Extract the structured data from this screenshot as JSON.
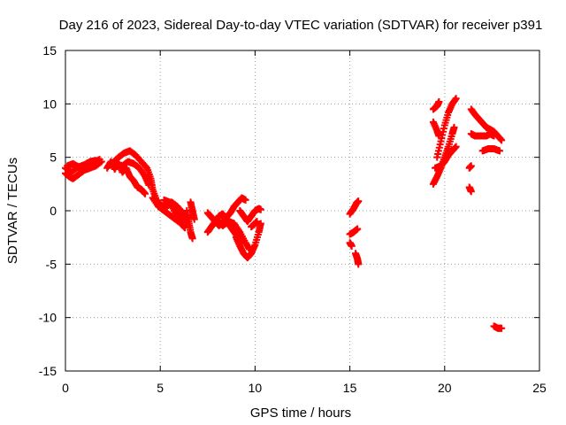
{
  "chart_data": {
    "type": "scatter",
    "title": "Day 216 of 2023, Sidereal Day-to-day VTEC variation (SDTVAR) for receiver p391",
    "xlabel": "GPS time / hours",
    "ylabel": "SDTVAR / TECUs",
    "xlim": [
      0,
      25
    ],
    "ylim": [
      -15,
      15
    ],
    "xticks": [
      "0",
      "5",
      "10",
      "15",
      "20",
      "25"
    ],
    "yticks": [
      "15",
      "10",
      "5",
      "0",
      "-5",
      "-10",
      "-15"
    ],
    "grid": true,
    "marker": "plus",
    "color": "#ff0000",
    "series": [
      {
        "name": "SDTVAR",
        "tracks": [
          [
            [
              0.0,
              4.0
            ],
            [
              0.3,
              3.6
            ],
            [
              0.6,
              4.0
            ],
            [
              0.9,
              4.2
            ],
            [
              1.2,
              4.4
            ],
            [
              1.5,
              4.5
            ],
            [
              1.8,
              4.8
            ]
          ],
          [
            [
              0.0,
              3.5
            ],
            [
              0.2,
              3.2
            ],
            [
              0.4,
              3.0
            ],
            [
              0.7,
              3.4
            ],
            [
              1.0,
              3.8
            ],
            [
              1.3,
              4.0
            ],
            [
              1.6,
              4.2
            ],
            [
              1.9,
              4.6
            ]
          ],
          [
            [
              0.1,
              4.2
            ],
            [
              0.4,
              4.4
            ],
            [
              0.7,
              4.1
            ],
            [
              1.0,
              4.3
            ],
            [
              1.3,
              4.6
            ],
            [
              1.6,
              4.7
            ]
          ],
          [
            [
              2.2,
              4.0
            ],
            [
              2.4,
              4.6
            ],
            [
              2.6,
              3.9
            ],
            [
              2.8,
              4.5
            ],
            [
              3.0,
              3.6
            ],
            [
              3.2,
              4.0
            ],
            [
              3.4,
              3.2
            ],
            [
              3.6,
              2.8
            ],
            [
              3.8,
              2.2
            ],
            [
              4.0,
              2.0
            ],
            [
              4.2,
              1.6
            ]
          ],
          [
            [
              2.5,
              4.5
            ],
            [
              2.8,
              5.0
            ],
            [
              3.1,
              5.4
            ],
            [
              3.4,
              5.6
            ],
            [
              3.7,
              5.2
            ],
            [
              4.0,
              4.6
            ],
            [
              4.3,
              4.0
            ],
            [
              4.5,
              3.0
            ],
            [
              4.6,
              2.0
            ],
            [
              4.8,
              1.0
            ],
            [
              5.0,
              0.5
            ]
          ],
          [
            [
              3.0,
              4.2
            ],
            [
              3.3,
              4.6
            ],
            [
              3.6,
              4.4
            ],
            [
              3.9,
              4.0
            ],
            [
              4.2,
              3.2
            ],
            [
              4.4,
              2.4
            ]
          ],
          [
            [
              4.6,
              1.2
            ],
            [
              4.9,
              0.4
            ],
            [
              5.2,
              0.0
            ],
            [
              5.5,
              -0.4
            ],
            [
              5.8,
              -0.8
            ],
            [
              6.1,
              -1.2
            ],
            [
              6.3,
              -1.6
            ]
          ],
          [
            [
              5.0,
              0.6
            ],
            [
              5.3,
              0.3
            ],
            [
              5.6,
              0.8
            ],
            [
              5.9,
              0.4
            ],
            [
              6.2,
              -0.2
            ],
            [
              6.5,
              -0.8
            ]
          ],
          [
            [
              5.2,
              1.0
            ],
            [
              5.5,
              0.8
            ],
            [
              5.8,
              -0.2
            ],
            [
              6.1,
              -0.6
            ],
            [
              6.4,
              -1.0
            ]
          ],
          [
            [
              6.4,
              0.0
            ],
            [
              6.5,
              -1.0
            ],
            [
              6.6,
              -2.0
            ],
            [
              6.7,
              -2.6
            ]
          ],
          [
            [
              6.6,
              0.8
            ],
            [
              6.7,
              0.0
            ],
            [
              6.8,
              -0.8
            ]
          ],
          [
            [
              7.5,
              -0.2
            ],
            [
              7.7,
              -0.6
            ],
            [
              7.9,
              -1.0
            ],
            [
              8.1,
              -1.4
            ],
            [
              8.3,
              -1.0
            ],
            [
              8.5,
              -0.6
            ],
            [
              8.7,
              -0.2
            ],
            [
              8.9,
              0.4
            ],
            [
              9.1,
              0.8
            ],
            [
              9.3,
              1.2
            ],
            [
              9.5,
              1.0
            ]
          ],
          [
            [
              7.5,
              -2.0
            ],
            [
              7.7,
              -1.5
            ],
            [
              7.9,
              -1.0
            ],
            [
              8.1,
              -0.5
            ],
            [
              8.3,
              -0.3
            ],
            [
              8.5,
              -0.8
            ],
            [
              8.7,
              -1.5
            ],
            [
              8.9,
              -2.0
            ],
            [
              9.1,
              -2.5
            ],
            [
              9.3,
              -3.0
            ]
          ],
          [
            [
              8.0,
              -1.0
            ],
            [
              8.3,
              -1.4
            ],
            [
              8.6,
              -1.0
            ],
            [
              8.9,
              -1.2
            ],
            [
              9.2,
              -2.0
            ],
            [
              9.5,
              -3.0
            ],
            [
              9.7,
              -3.6
            ]
          ],
          [
            [
              9.0,
              -2.5
            ],
            [
              9.2,
              -3.3
            ],
            [
              9.4,
              -4.0
            ],
            [
              9.6,
              -4.4
            ],
            [
              9.8,
              -4.0
            ],
            [
              10.0,
              -3.2
            ],
            [
              10.2,
              -2.0
            ],
            [
              10.3,
              -1.2
            ]
          ],
          [
            [
              9.2,
              0.0
            ],
            [
              9.4,
              -0.5
            ],
            [
              9.6,
              -1.0
            ],
            [
              9.8,
              -0.5
            ],
            [
              10.0,
              0.0
            ],
            [
              10.2,
              0.2
            ],
            [
              10.3,
              0.1
            ]
          ],
          [
            [
              9.8,
              -1.5
            ],
            [
              10.0,
              -1.2
            ],
            [
              10.1,
              -1.0
            ]
          ],
          [
            [
              15.0,
              -0.3
            ],
            [
              15.2,
              0.2
            ],
            [
              15.35,
              0.7
            ],
            [
              15.45,
              0.9
            ]
          ],
          [
            [
              15.0,
              -2.2
            ],
            [
              15.2,
              -2.0
            ],
            [
              15.4,
              -1.7
            ]
          ],
          [
            [
              15.0,
              -3.0
            ],
            [
              15.1,
              -3.3
            ]
          ],
          [
            [
              15.3,
              -4.0
            ],
            [
              15.4,
              -4.5
            ],
            [
              15.45,
              -5.0
            ]
          ],
          [
            [
              19.4,
              9.5
            ],
            [
              19.6,
              9.8
            ],
            [
              19.7,
              10.2
            ]
          ],
          [
            [
              19.4,
              8.3
            ],
            [
              19.6,
              7.5
            ],
            [
              19.7,
              7.0
            ]
          ],
          [
            [
              19.4,
              2.5
            ],
            [
              19.6,
              3.2
            ],
            [
              19.8,
              4.0
            ],
            [
              20.0,
              5.0
            ],
            [
              20.2,
              6.0
            ],
            [
              20.4,
              7.2
            ],
            [
              20.5,
              7.8
            ]
          ],
          [
            [
              19.5,
              4.0
            ],
            [
              19.8,
              4.2
            ],
            [
              20.0,
              4.6
            ],
            [
              20.2,
              5.2
            ],
            [
              20.4,
              5.6
            ],
            [
              20.6,
              6.0
            ]
          ],
          [
            [
              19.6,
              5.0
            ],
            [
              19.8,
              6.5
            ],
            [
              20.0,
              8.0
            ],
            [
              20.2,
              9.2
            ],
            [
              20.4,
              10.0
            ],
            [
              20.6,
              10.5
            ]
          ],
          [
            [
              21.3,
              4.0
            ],
            [
              21.4,
              4.2
            ]
          ],
          [
            [
              21.3,
              2.2
            ],
            [
              21.4,
              1.8
            ]
          ],
          [
            [
              21.4,
              9.5
            ],
            [
              21.6,
              9.0
            ],
            [
              21.8,
              8.6
            ],
            [
              22.0,
              8.2
            ],
            [
              22.2,
              7.8
            ],
            [
              22.4,
              7.6
            ],
            [
              22.6,
              7.4
            ],
            [
              22.8,
              7.0
            ],
            [
              23.0,
              6.6
            ]
          ],
          [
            [
              21.4,
              7.2
            ],
            [
              21.6,
              7.0
            ],
            [
              21.8,
              7.0
            ],
            [
              22.0,
              7.0
            ],
            [
              22.2,
              7.0
            ],
            [
              22.4,
              7.2
            ],
            [
              22.6,
              7.0
            ]
          ],
          [
            [
              22.0,
              5.6
            ],
            [
              22.3,
              5.8
            ],
            [
              22.6,
              5.8
            ],
            [
              22.9,
              5.6
            ]
          ],
          [
            [
              22.6,
              -10.8
            ],
            [
              22.8,
              -11.0
            ],
            [
              23.0,
              -11.0
            ]
          ]
        ]
      }
    ]
  }
}
